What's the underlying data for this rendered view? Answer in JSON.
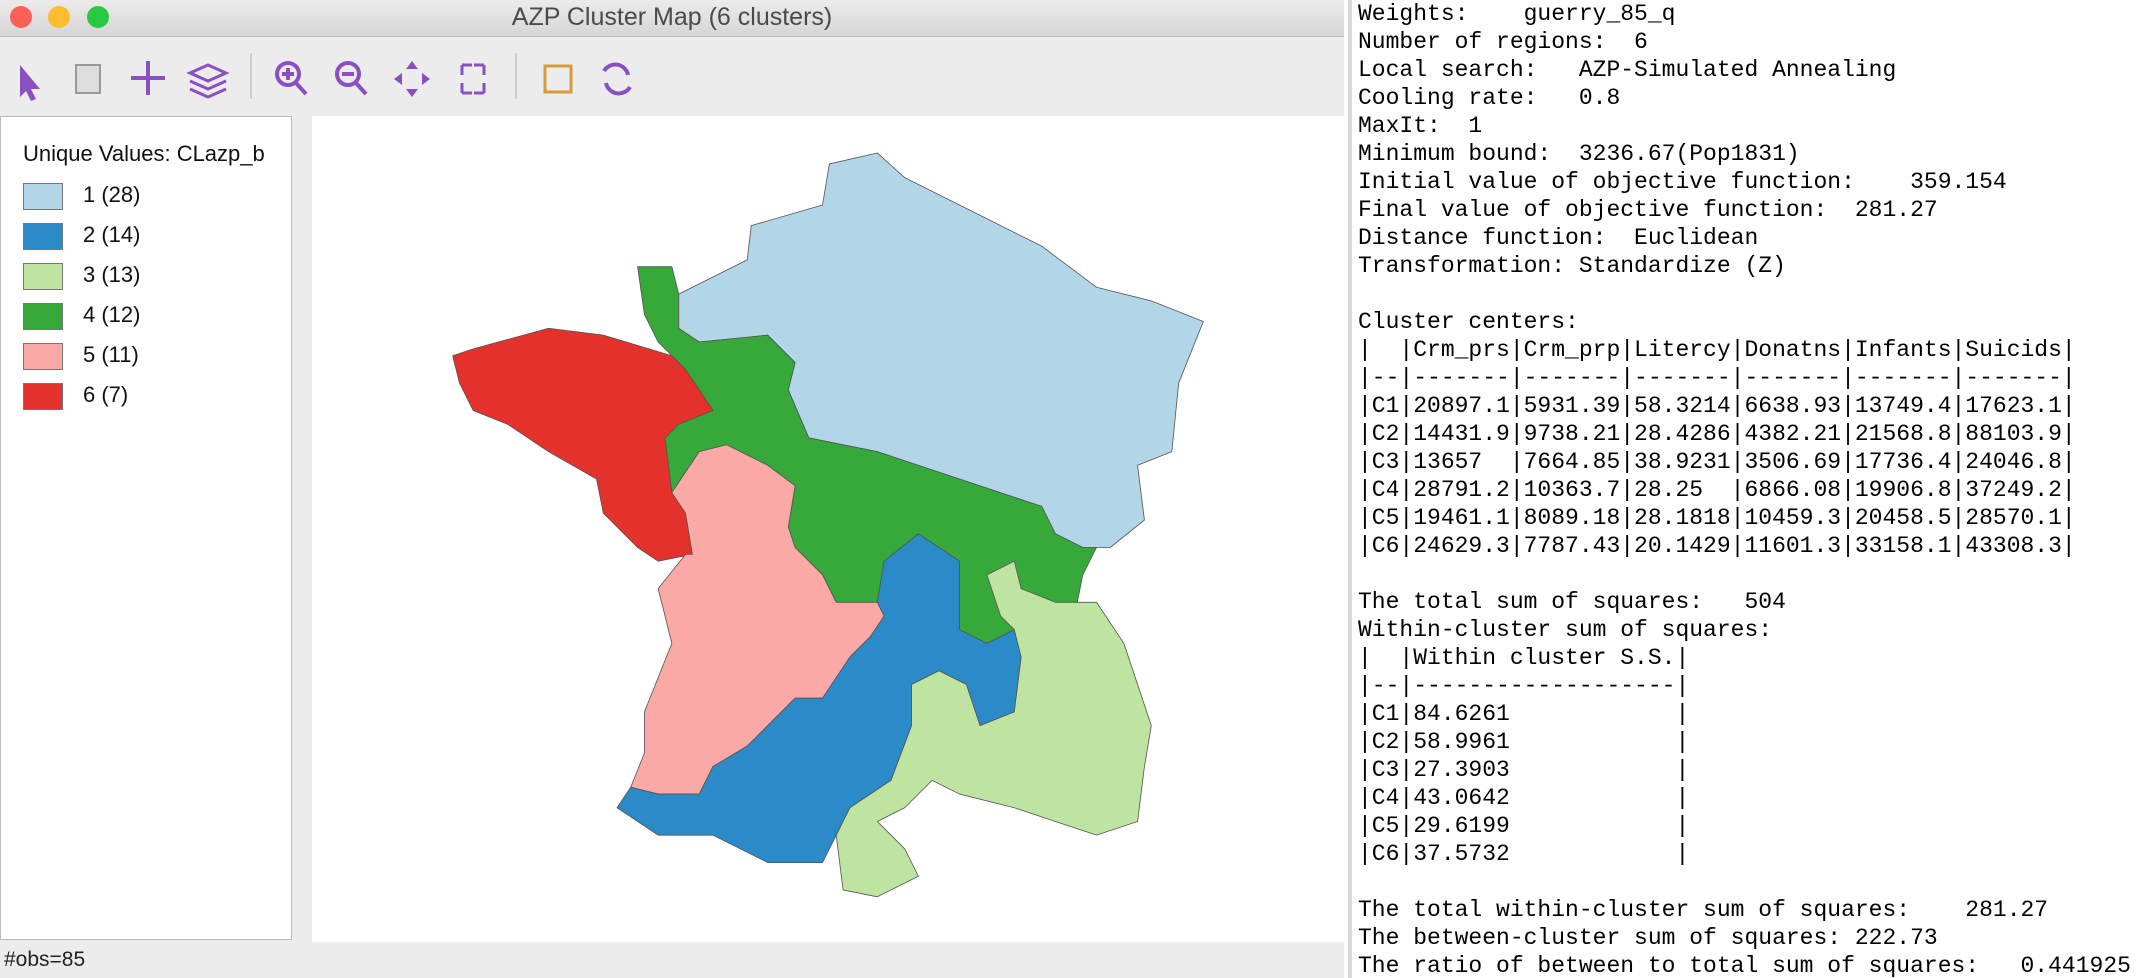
{
  "window": {
    "title": "AZP Cluster Map (6 clusters)",
    "status": "#obs=85"
  },
  "legend": {
    "title": "Unique Values: CLazp_b",
    "items": [
      {
        "label": "1 (28)",
        "color": "#b2d5e8"
      },
      {
        "label": "2 (14)",
        "color": "#2a8bc8"
      },
      {
        "label": "3 (13)",
        "color": "#bfe3a0"
      },
      {
        "label": "4 (12)",
        "color": "#37a83a"
      },
      {
        "label": "5 (11)",
        "color": "#fba9a6"
      },
      {
        "label": "6 (7)",
        "color": "#e5312b"
      }
    ]
  },
  "report": {
    "blocks": [
      [
        "Weights:    guerry_85_q",
        "Number of regions:  6",
        "Local search:   AZP-Simulated Annealing",
        "Cooling rate:   0.8",
        "MaxIt:  1",
        "Minimum bound:  3236.67(Pop1831)",
        "Initial value of objective function:    359.154",
        "Final value of objective function:  281.27",
        "Distance function:  Euclidean",
        "Transformation: Standardize (Z)"
      ],
      [
        "Cluster centers:",
        "|  |Crm_prs|Crm_prp|Litercy|Donatns|Infants|Suicids|",
        "|--|-------|-------|-------|-------|-------|-------|",
        "|C1|20897.1|5931.39|58.3214|6638.93|13749.4|17623.1|",
        "|C2|14431.9|9738.21|28.4286|4382.21|21568.8|88103.9|",
        "|C3|13657  |7664.85|38.9231|3506.69|17736.4|24046.8|",
        "|C4|28791.2|10363.7|28.25  |6866.08|19906.8|37249.2|",
        "|C5|19461.1|8089.18|28.1818|10459.3|20458.5|28570.1|",
        "|C6|24629.3|7787.43|20.1429|11601.3|33158.1|43308.3|"
      ],
      [
        "The total sum of squares:   504",
        "Within-cluster sum of squares:",
        "|  |Within cluster S.S.|",
        "|--|-------------------|",
        "|C1|84.6261            |",
        "|C2|58.9961            |",
        "|C3|27.3903            |",
        "|C4|43.0642            |",
        "|C5|29.6199            |",
        "|C6|37.5732            |"
      ],
      [
        "The total within-cluster sum of squares:    281.27",
        "The between-cluster sum of squares: 222.73",
        "The ratio of between to total sum of squares:   0.441925"
      ]
    ]
  }
}
